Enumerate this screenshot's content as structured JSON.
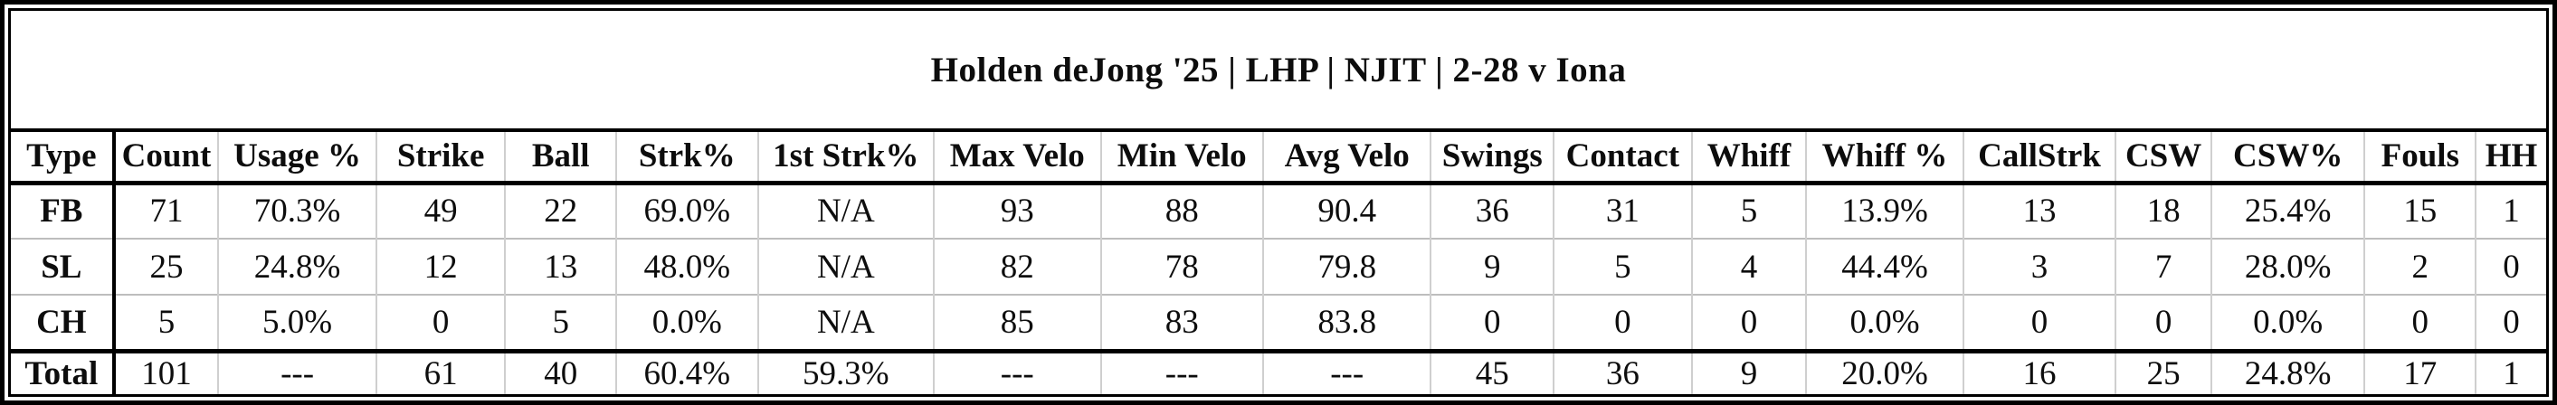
{
  "title": "Holden deJong '25 | LHP | NJIT | 2-28 v Iona",
  "table": {
    "columns": [
      "Type",
      "Count",
      "Usage %",
      "Strike",
      "Ball",
      "Strk%",
      "1st Strk%",
      "Max Velo",
      "Min Velo",
      "Avg Velo",
      "Swings",
      "Contact",
      "Whiff",
      "Whiff %",
      "CallStrk",
      "CSW",
      "CSW%",
      "Fouls",
      "HH"
    ],
    "rows": [
      {
        "type": "FB",
        "values": [
          "71",
          "70.3%",
          "49",
          "22",
          "69.0%",
          "N/A",
          "93",
          "88",
          "90.4",
          "36",
          "31",
          "5",
          "13.9%",
          "13",
          "18",
          "25.4%",
          "15",
          "1"
        ]
      },
      {
        "type": "SL",
        "values": [
          "25",
          "24.8%",
          "12",
          "13",
          "48.0%",
          "N/A",
          "82",
          "78",
          "79.8",
          "9",
          "5",
          "4",
          "44.4%",
          "3",
          "7",
          "28.0%",
          "2",
          "0"
        ]
      },
      {
        "type": "CH",
        "values": [
          "5",
          "5.0%",
          "0",
          "5",
          "0.0%",
          "N/A",
          "85",
          "83",
          "83.8",
          "0",
          "0",
          "0",
          "0.0%",
          "0",
          "0",
          "0.0%",
          "0",
          "0"
        ]
      }
    ],
    "total": {
      "type": "Total",
      "values": [
        "101",
        "---",
        "61",
        "40",
        "60.4%",
        "59.3%",
        "---",
        "---",
        "---",
        "45",
        "36",
        "9",
        "20.0%",
        "16",
        "25",
        "24.8%",
        "17",
        "1"
      ]
    }
  },
  "colors": {
    "border_black": "#000000",
    "separator_gray": "#cfcfcf",
    "row_divider_gray": "#bdbdbd",
    "text": "#0d0d0d",
    "background": "#ffffff"
  }
}
